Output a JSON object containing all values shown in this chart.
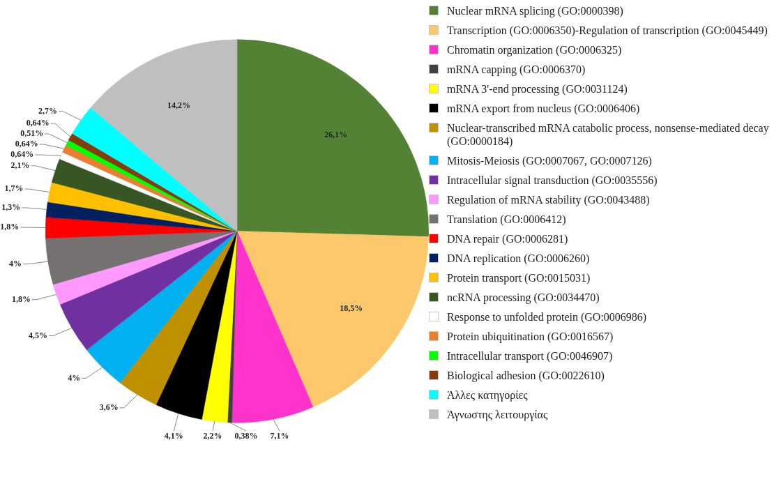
{
  "chart_data": {
    "type": "pie",
    "legend": "right",
    "categories": [
      "Nuclear mRNA splicing (GO:0000398)",
      "Transcription (GO:0006350)-Regulation of transcription (GO:0045449)",
      "Chromatin organization (GO:0006325)",
      "mRNA capping (GO:0006370)",
      "mRNA 3'-end processing (GO:0031124)",
      "mRNA export from nucleus (GO:0006406)",
      "Nuclear-transcribed mRNA catabolic process, nonsense-mediated decay (GO:0000184)",
      "Mitosis-Meiosis  (GO:0007067, GO:0007126)",
      "Intracellular signal transduction (GO:0035556)",
      "Regulation of mRNA stability (GO:0043488)",
      "Translation (GO:0006412)",
      "DNA repair (GO:0006281)",
      "DNA replication (GO:0006260)",
      "Protein transport (GO:0015031)",
      "ncRNA processing (GO:0034470)",
      "Response to unfolded protein (GO:0006986)",
      "Protein ubiquitination (GO:0016567)",
      "Intracellular transport (GO:0046907)",
      "Biological adhesion (GO:0022610)",
      "Άλλες κατηγορίες",
      "Άγνωστης λειτουργίας"
    ],
    "values": [
      26.1,
      18.5,
      7.1,
      0.38,
      2.2,
      4.1,
      3.6,
      4,
      4.5,
      1.8,
      4,
      1.8,
      1.3,
      1.7,
      2.1,
      0.64,
      0.64,
      0.51,
      0.64,
      2.7,
      14.2
    ],
    "value_labels": [
      "26,1%",
      "18,5%",
      "7,1%",
      "0,38%",
      "2,2%",
      "4,1%",
      "3,6%",
      "4%",
      "4,5%",
      "1,8%",
      "4%",
      "1,8%",
      "1,3%",
      "1,7%",
      "2,1%",
      "0,64%",
      "0,64%",
      "0,51%",
      "0,64%",
      "2,7%",
      "14,2%"
    ],
    "colors": [
      "#548235",
      "#fdc86c",
      "#ff33cc",
      "#404040",
      "#ffff00",
      "#000000",
      "#bf9000",
      "#00b0f0",
      "#7030a0",
      "#ff99ff",
      "#767171",
      "#ff0000",
      "#002060",
      "#ffc000",
      "#375623",
      "#ffffff",
      "#ed7d31",
      "#00ff00",
      "#843c0c",
      "#00ffff",
      "#bfbfbf"
    ]
  }
}
